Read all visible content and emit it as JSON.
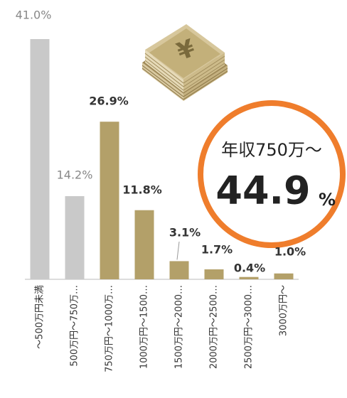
{
  "chart_data": {
    "type": "bar",
    "categories": [
      "～500万円未満",
      "500万円～750万…",
      "750万円～1000万…",
      "1000万円～1500…",
      "1500万円～2000…",
      "2000万円～2500…",
      "2500万円～3000…",
      "3000万円～"
    ],
    "values": [
      41.0,
      14.2,
      26.9,
      11.8,
      3.1,
      1.7,
      0.4,
      1.0
    ],
    "value_labels": [
      "41.0%",
      "14.2%",
      "26.9%",
      "11.8%",
      "3.1%",
      "1.7%",
      "0.4%",
      "1.0%"
    ],
    "colors": [
      "#c9c9c9",
      "#c9c9c9",
      "#b3a069",
      "#b3a069",
      "#b3a069",
      "#b3a069",
      "#b3a069",
      "#b3a069"
    ],
    "annotation": {
      "title": "年収750万～",
      "value": 44.9,
      "unit": "%"
    }
  }
}
